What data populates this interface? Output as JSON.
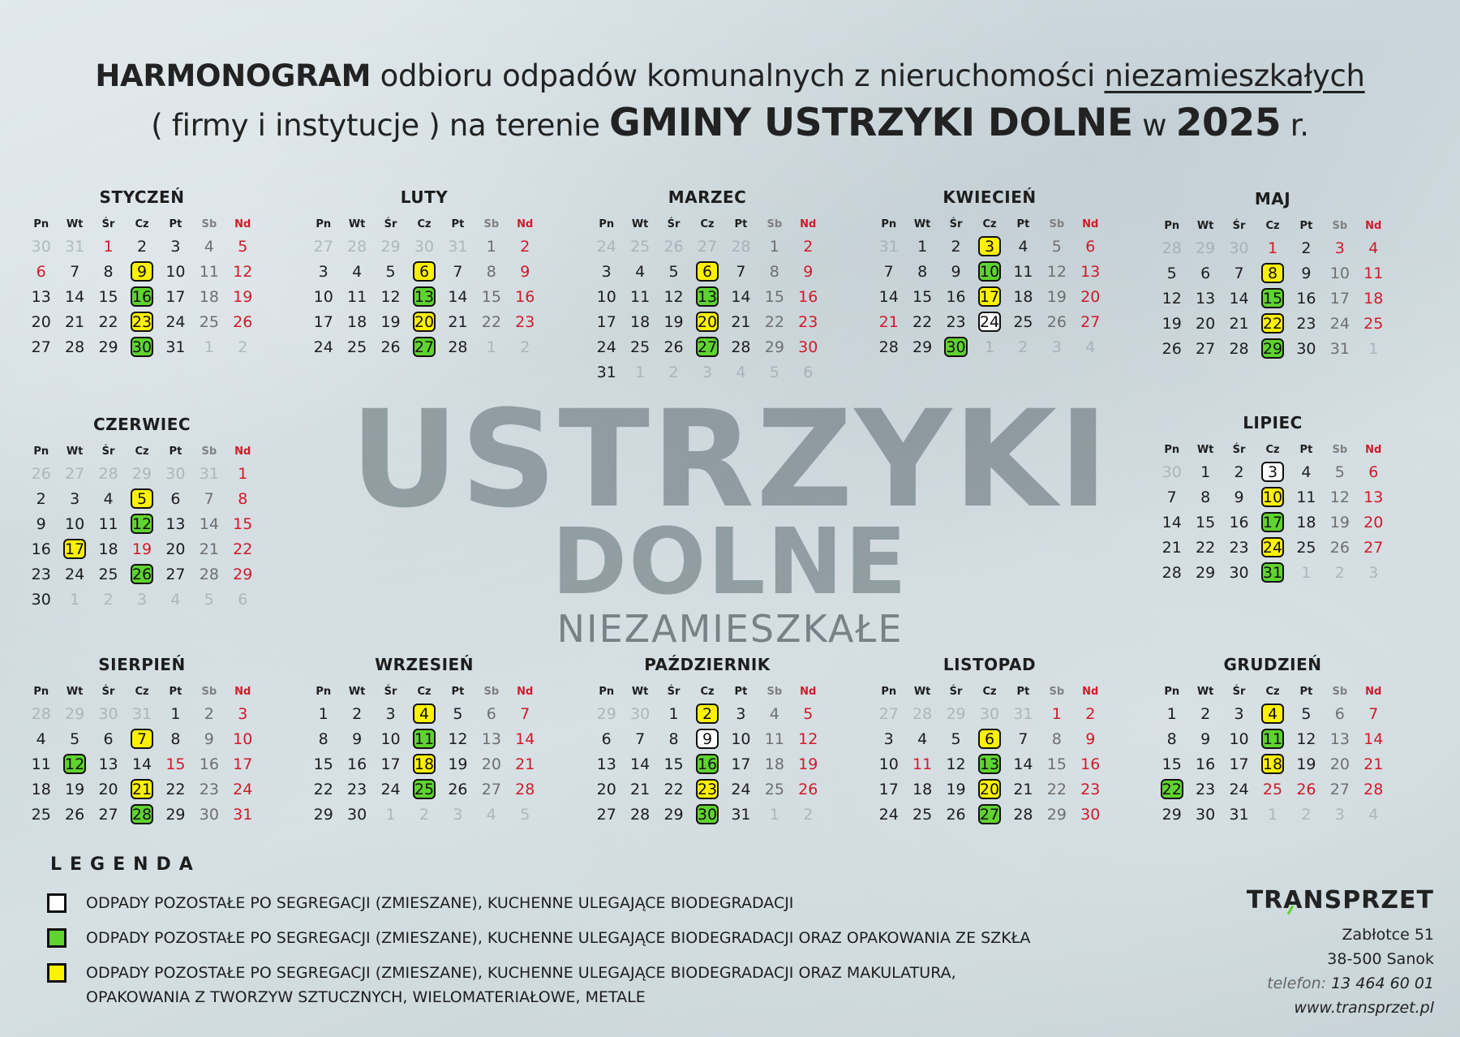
{
  "header": {
    "line1_bold": "HARMONOGRAM",
    "line1_rest": " odbioru odpadów komunalnych z nieruchomości ",
    "line1_underlined": "niezamieszkałych",
    "line2_a": "( firmy i instytucje ) na terenie ",
    "line2_bold": "GMINY USTRZYKI DOLNE",
    "line2_b": " w ",
    "line2_year": "2025",
    "line2_end": " r."
  },
  "watermark": {
    "line1": "USTRZYKI",
    "line2": "DOLNE",
    "line3": "NIEZAMIESZKAŁE"
  },
  "weekday_labels": [
    "Pn",
    "Wt",
    "Śr",
    "Cz",
    "Pt",
    "Sb",
    "Nd"
  ],
  "months": [
    {
      "name": "STYCZEŃ",
      "offset": 2,
      "days": 31,
      "prev_days": 31,
      "white": [],
      "green": [
        16,
        30
      ],
      "yellow": [
        9,
        23
      ],
      "red_extra": [
        1,
        6
      ]
    },
    {
      "name": "LUTY",
      "offset": 5,
      "days": 28,
      "prev_days": 31,
      "white": [],
      "green": [
        13,
        27
      ],
      "yellow": [
        6,
        20
      ],
      "red_extra": []
    },
    {
      "name": "MARZEC",
      "offset": 5,
      "days": 31,
      "prev_days": 28,
      "white": [],
      "green": [
        13,
        27
      ],
      "yellow": [
        6,
        20
      ],
      "red_extra": []
    },
    {
      "name": "KWIECIEŃ",
      "offset": 1,
      "days": 30,
      "prev_days": 31,
      "white": [
        24
      ],
      "green": [
        10,
        30
      ],
      "yellow": [
        3,
        17
      ],
      "red_extra": [
        21
      ]
    },
    {
      "name": "MAJ",
      "offset": 3,
      "days": 31,
      "prev_days": 30,
      "white": [],
      "green": [
        15,
        29
      ],
      "yellow": [
        8,
        22
      ],
      "red_extra": [
        1,
        3
      ]
    },
    {
      "name": "CZERWIEC",
      "offset": 6,
      "days": 30,
      "prev_days": 31,
      "white": [],
      "green": [
        12,
        26
      ],
      "yellow": [
        5,
        17
      ],
      "red_extra": [
        19
      ]
    },
    {
      "name": "LIPIEC",
      "offset": 1,
      "days": 31,
      "prev_days": 30,
      "white": [
        3
      ],
      "green": [
        17,
        31
      ],
      "yellow": [
        10,
        24
      ],
      "red_extra": []
    },
    {
      "name": "SIERPIEŃ",
      "offset": 4,
      "days": 31,
      "prev_days": 31,
      "white": [],
      "green": [
        12,
        28
      ],
      "yellow": [
        7,
        21
      ],
      "red_extra": [
        15
      ]
    },
    {
      "name": "WRZESIEŃ",
      "offset": 0,
      "days": 30,
      "prev_days": 31,
      "white": [],
      "green": [
        11,
        25
      ],
      "yellow": [
        4,
        18
      ],
      "red_extra": []
    },
    {
      "name": "PAŹDZIERNIK",
      "offset": 2,
      "days": 31,
      "prev_days": 30,
      "white": [
        9
      ],
      "green": [
        16,
        30
      ],
      "yellow": [
        2,
        23
      ],
      "red_extra": []
    },
    {
      "name": "LISTOPAD",
      "offset": 5,
      "days": 30,
      "prev_days": 31,
      "white": [],
      "green": [
        13,
        27
      ],
      "yellow": [
        6,
        20
      ],
      "red_extra": [
        1,
        11
      ]
    },
    {
      "name": "GRUDZIEŃ",
      "offset": 0,
      "days": 31,
      "prev_days": 30,
      "white": [],
      "green": [
        11,
        22
      ],
      "yellow": [
        4,
        18
      ],
      "red_extra": [
        25,
        26
      ]
    }
  ],
  "legend": {
    "title": "LEGENDA",
    "items": [
      {
        "type": "white",
        "line1": "ODPADY POZOSTAŁE PO SEGREGACJI (ZMIESZANE), KUCHENNE ULEGAJĄCE BIODEGRADACJI",
        "line2": ""
      },
      {
        "type": "green",
        "line1": "ODPADY POZOSTAŁE PO SEGREGACJI (ZMIESZANE), KUCHENNE ULEGAJĄCE BIODEGRADACJI ORAZ OPAKOWANIA ZE SZKŁA",
        "line2": ""
      },
      {
        "type": "yellow",
        "line1": "ODPADY POZOSTAŁE PO SEGREGACJI (ZMIESZANE), KUCHENNE ULEGAJĄCE BIODEGRADACJI ORAZ MAKULATURA,",
        "line2": "OPAKOWANIA Z TWORZYW SZTUCZNYCH, WIELOMATERIAŁOWE, METALE"
      }
    ]
  },
  "company": {
    "logo_pre": "TR",
    "logo_a": "A",
    "logo_post": "NSPRZET",
    "street": "Zabłotce 51",
    "city": "38-500 Sanok",
    "phone_label": "telefon: ",
    "phone": "13 464 60 01",
    "www": "www.transprzet.pl"
  },
  "colors": {
    "white": "#ffffff",
    "green": "#5fd32f",
    "yellow": "#fff200",
    "red": "#d01a2a",
    "saturday": "#6f6f6f"
  }
}
